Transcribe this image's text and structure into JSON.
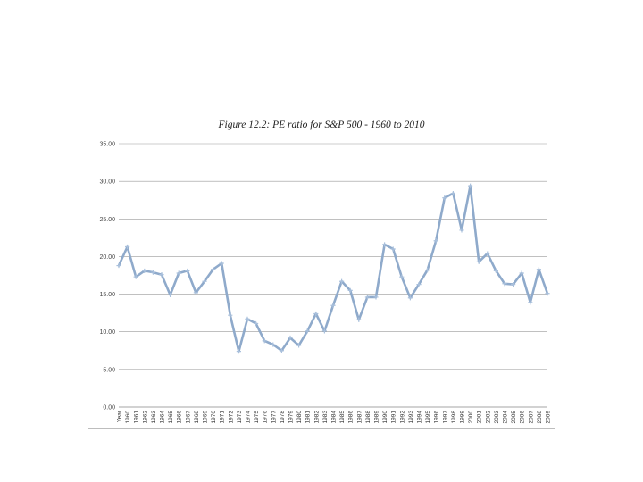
{
  "chart_data": {
    "type": "line",
    "title": "Figure 12.2: PE ratio for S&P 500 - 1960 to 2010",
    "xlabel": "",
    "ylabel": "",
    "ylim": [
      0,
      35
    ],
    "y_tick_labels": [
      "0.00",
      "5.00",
      "10.00",
      "15.00",
      "20.00",
      "25.00",
      "30.00",
      "35.00"
    ],
    "categories": [
      "Year",
      "1960",
      "1961",
      "1962",
      "1963",
      "1964",
      "1965",
      "1966",
      "1967",
      "1968",
      "1969",
      "1970",
      "1971",
      "1972",
      "1973",
      "1974",
      "1975",
      "1976",
      "1977",
      "1978",
      "1979",
      "1980",
      "1981",
      "1982",
      "1983",
      "1984",
      "1985",
      "1986",
      "1987",
      "1988",
      "1989",
      "1990",
      "1991",
      "1992",
      "1993",
      "1994",
      "1995",
      "1996",
      "1997",
      "1998",
      "1999",
      "2000",
      "2001",
      "2002",
      "2003",
      "2004",
      "2005",
      "2006",
      "2007",
      "2008",
      "2009"
    ],
    "series": [
      {
        "color": "#8faacb",
        "values": [
          18.8,
          21.3,
          17.3,
          18.1,
          17.9,
          17.6,
          14.9,
          17.8,
          18.1,
          15.2,
          16.7,
          18.3,
          19.1,
          12.2,
          7.4,
          11.7,
          11.1,
          8.8,
          8.3,
          7.5,
          9.2,
          8.2,
          10.1,
          12.4,
          10.1,
          13.5,
          16.7,
          15.5,
          11.6,
          14.6,
          14.6,
          21.6,
          21.0,
          17.3,
          14.5,
          16.3,
          18.2,
          22.1,
          27.8,
          28.4,
          23.5,
          29.4,
          19.3,
          20.4,
          18.1,
          16.4,
          16.3,
          17.8,
          13.9,
          18.3,
          15.1
        ]
      }
    ],
    "grid": "horizontal",
    "legend": "none"
  }
}
